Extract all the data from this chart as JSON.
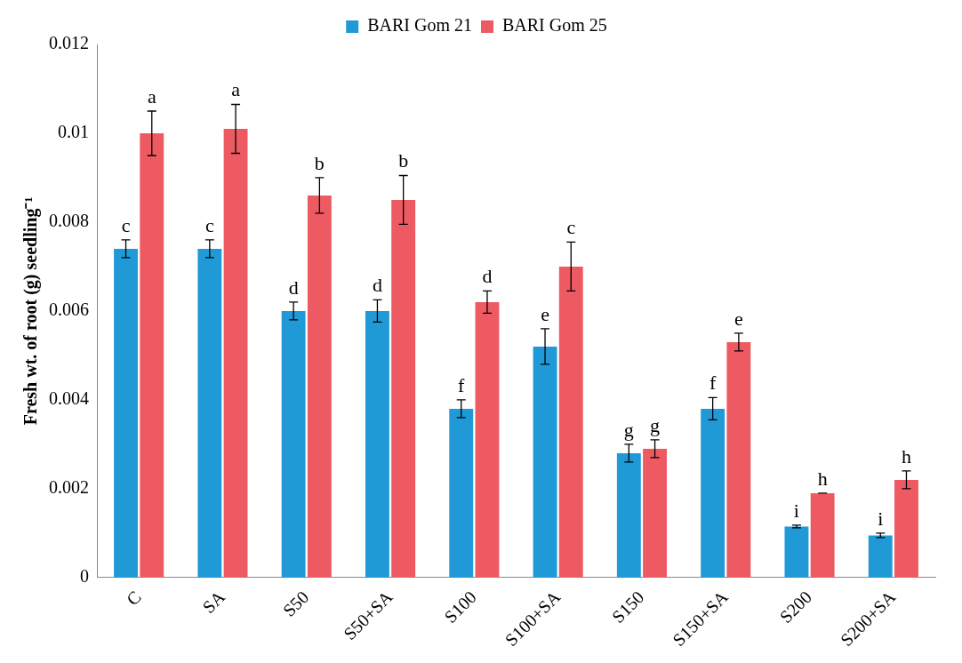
{
  "chart_data": {
    "type": "bar",
    "ylabel": "Fresh wt. of root (g) seedling⁻¹",
    "categories": [
      "C",
      "SA",
      "S50",
      "S50+SA",
      "S100",
      "S100+SA",
      "S150",
      "S150+SA",
      "S200",
      "S200+SA"
    ],
    "series": [
      {
        "name": "BARI Gom 21",
        "color": "#1f9ad6",
        "values": [
          0.0074,
          0.0074,
          0.006,
          0.006,
          0.0038,
          0.0052,
          0.0028,
          0.0038,
          0.00115,
          0.00095
        ],
        "errors": [
          0.0002,
          0.0002,
          0.0002,
          0.00025,
          0.0002,
          0.0004,
          0.0002,
          0.00025,
          3e-05,
          5e-05
        ],
        "value_labels": [
          "c",
          "c",
          "d",
          "d",
          "f",
          "e",
          "g",
          "f",
          "i",
          "i"
        ]
      },
      {
        "name": "BARI Gom 25",
        "color": "#ee5a62",
        "values": [
          0.01,
          0.0101,
          0.0086,
          0.0085,
          0.0062,
          0.007,
          0.0029,
          0.0053,
          0.0019,
          0.0022
        ],
        "errors": [
          0.0005,
          0.00055,
          0.0004,
          0.00055,
          0.00025,
          0.00055,
          0.0002,
          0.0002,
          0,
          0.0002
        ],
        "value_labels": [
          "a",
          "a",
          "b",
          "b",
          "d",
          "c",
          "g",
          "e",
          "h",
          "h"
        ]
      }
    ],
    "ylim": [
      0,
      0.012
    ],
    "yticks": [
      0,
      0.002,
      0.004,
      0.006,
      0.008,
      0.01,
      0.012
    ],
    "grid": false,
    "legend": "top"
  }
}
